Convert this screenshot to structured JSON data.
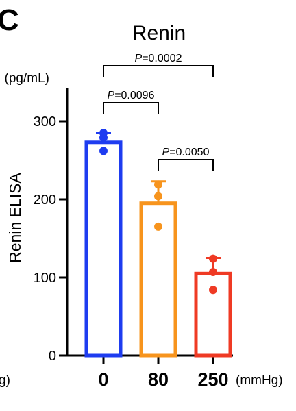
{
  "panel_label": "C",
  "y_unit": "(pg/mL)",
  "x_unit": "(mmHg)",
  "left_edge_fragment": "g)",
  "chart_data": {
    "type": "bar",
    "title": "Renin",
    "xlabel": "",
    "ylabel": "Renin ELISA",
    "categories": [
      "0",
      "80",
      "250"
    ],
    "ylim": [
      0,
      330
    ],
    "yticks": [
      0,
      100,
      200,
      300
    ],
    "series": [
      {
        "values": [
          273,
          195,
          105
        ],
        "error": [
          12,
          28,
          20
        ],
        "colors": [
          "#1e3cf0",
          "#f7941d",
          "#ef3a24"
        ],
        "points": [
          [
            285,
            279,
            262
          ],
          [
            219,
            204,
            165
          ],
          [
            124,
            107,
            84
          ]
        ]
      }
    ],
    "comparisons": [
      {
        "from": 0,
        "to": 2,
        "label": "P=0.0002"
      },
      {
        "from": 0,
        "to": 1,
        "label": "P=0.0096"
      },
      {
        "from": 1,
        "to": 2,
        "label": "P=0.0050"
      }
    ],
    "grid": false,
    "legend": "none"
  }
}
